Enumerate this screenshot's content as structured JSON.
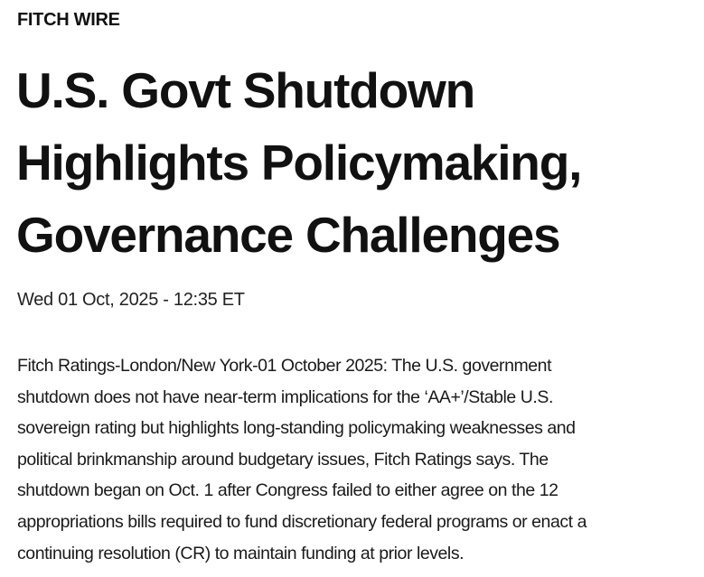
{
  "kicker": "FITCH WIRE",
  "headline": {
    "lines": [
      "U.S. Govt Shutdown",
      "Highlights Policymaking,",
      "Governance Challenges"
    ]
  },
  "date": "Wed 01 Oct, 2025 - 12:35 ET",
  "body": {
    "lines": [
      "Fitch Ratings-London/New York-01 October 2025: The U.S. government",
      "shutdown does not have near-term implications for the ‘AA+’/Stable U.S.",
      "sovereign rating but highlights long-standing policymaking weaknesses and",
      "political brinkmanship around budgetary issues, Fitch Ratings says. The",
      "shutdown began on Oct. 1 after Congress failed to either agree on the 12",
      "appropriations bills required to fund discretionary federal programs or enact a",
      "continuing resolution (CR) to maintain funding at prior levels."
    ]
  }
}
